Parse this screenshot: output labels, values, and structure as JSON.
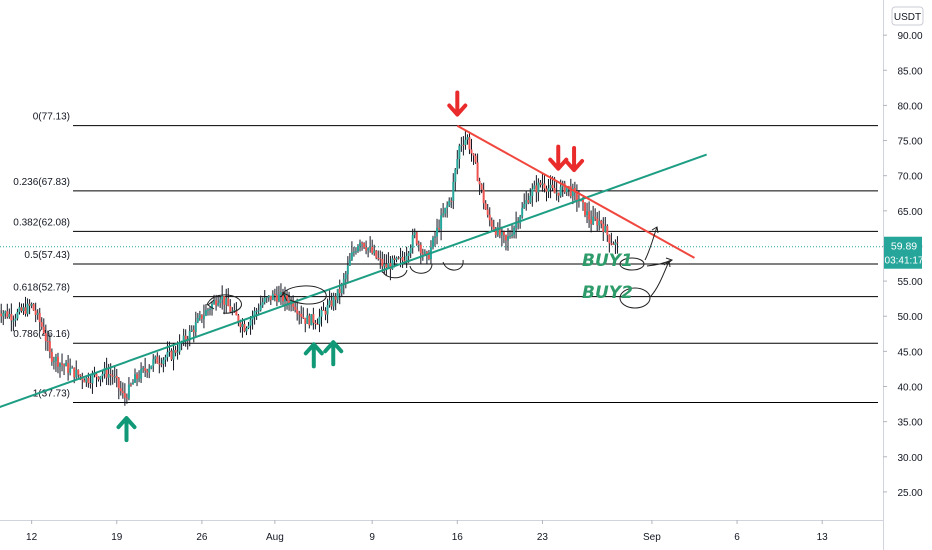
{
  "currency_badge": "USDT",
  "price_tag": {
    "value": "59.89",
    "countdown": "03:41:17"
  },
  "colors": {
    "bull": "#26a69a",
    "bear": "#ef5350",
    "wick": "#131722",
    "support_line": "#1d9e84",
    "resistance_line": "#f0473e",
    "fib_line": "#000000",
    "arrow_up": "#119977",
    "arrow_down": "#ea2b2b",
    "buy_text": "#2e9c6a",
    "price_tag_bg": "#26a69a",
    "current_price_line": "#26a69a"
  },
  "chart_data": {
    "type": "candlestick",
    "symbol_quote": "USDT",
    "y_axis": {
      "ticks": [
        "25.00",
        "30.00",
        "35.00",
        "40.00",
        "45.00",
        "50.00",
        "55.00",
        "60.00",
        "65.00",
        "70.00",
        "75.00",
        "80.00",
        "85.00",
        "90.00"
      ],
      "ylim": [
        21,
        95
      ]
    },
    "x_axis": {
      "tick_labels": [
        "12",
        "19",
        "26",
        "Aug",
        "9",
        "16",
        "23",
        "Sep",
        "6",
        "13"
      ],
      "tick_days": [
        0,
        7,
        14,
        20,
        28,
        35,
        42,
        51,
        58,
        65
      ],
      "xlim": [
        -2.6,
        70
      ]
    },
    "current_price": 59.89,
    "fib_levels": [
      {
        "label": "0(77.13)",
        "value": 77.13
      },
      {
        "label": "0.236(67.83)",
        "value": 67.83
      },
      {
        "label": "0.382(62.08)",
        "value": 62.08
      },
      {
        "label": "0.5(57.43)",
        "value": 57.43
      },
      {
        "label": "0.618(52.78)",
        "value": 52.78
      },
      {
        "label": "0.786(46.16)",
        "value": 46.16
      },
      {
        "label": "1(37.73)",
        "value": 37.73
      }
    ],
    "trendlines": [
      {
        "name": "support",
        "from": [
          -5.0,
          35.6
        ],
        "to": [
          55.5,
          73.0
        ]
      },
      {
        "name": "resistance",
        "from": [
          35.0,
          77.1
        ],
        "to": [
          54.5,
          58.3
        ]
      }
    ],
    "price_path": [
      [
        -3,
        51.0
      ],
      [
        -1.5,
        50.0
      ],
      [
        0,
        51.5
      ],
      [
        1,
        48.0
      ],
      [
        1.5,
        44.5
      ],
      [
        3,
        42.5
      ],
      [
        4.5,
        41.0
      ],
      [
        6,
        42.0
      ],
      [
        6.7,
        41.5
      ],
      [
        7.6,
        38.3
      ],
      [
        8.5,
        41.0
      ],
      [
        10,
        43.5
      ],
      [
        11.5,
        44.5
      ],
      [
        13,
        47.5
      ],
      [
        14,
        50.0
      ],
      [
        15.5,
        53.0
      ],
      [
        16.5,
        50.5
      ],
      [
        17.5,
        48.5
      ],
      [
        19,
        52.0
      ],
      [
        20,
        53.0
      ],
      [
        21.5,
        52.0
      ],
      [
        22.5,
        49.5
      ],
      [
        23.5,
        49.5
      ],
      [
        24.5,
        51.5
      ],
      [
        25.5,
        54.0
      ],
      [
        26.3,
        58.5
      ],
      [
        27,
        61.0
      ],
      [
        28,
        59.0
      ],
      [
        29,
        57.0
      ],
      [
        30.5,
        58.0
      ],
      [
        31.5,
        61.5
      ],
      [
        32.5,
        58.0
      ],
      [
        33.5,
        63.0
      ],
      [
        34.5,
        67.0
      ],
      [
        35.2,
        74.5
      ],
      [
        35.8,
        75.5
      ],
      [
        36.6,
        70.5
      ],
      [
        37.5,
        64.0
      ],
      [
        38.3,
        62.0
      ],
      [
        39,
        60.5
      ],
      [
        40,
        64.0
      ],
      [
        41,
        67.5
      ],
      [
        42,
        69.0
      ],
      [
        43,
        67.5
      ],
      [
        44,
        68.5
      ],
      [
        45,
        66.5
      ],
      [
        46,
        63.5
      ],
      [
        46.8,
        63.5
      ],
      [
        47.5,
        61.0
      ],
      [
        48.2,
        59.9
      ]
    ],
    "arrows": [
      {
        "dir": "up",
        "day": 7.8,
        "y": 35.5
      },
      {
        "dir": "up",
        "day": 23.2,
        "y": 46.0
      },
      {
        "dir": "up",
        "day": 24.8,
        "y": 46.3
      },
      {
        "dir": "down",
        "day": 35.0,
        "y": 78.7
      },
      {
        "dir": "down",
        "day": 43.3,
        "y": 71.0
      },
      {
        "dir": "down",
        "day": 44.6,
        "y": 70.8
      }
    ],
    "annotations": [
      "BUY1",
      "BUY2"
    ]
  }
}
